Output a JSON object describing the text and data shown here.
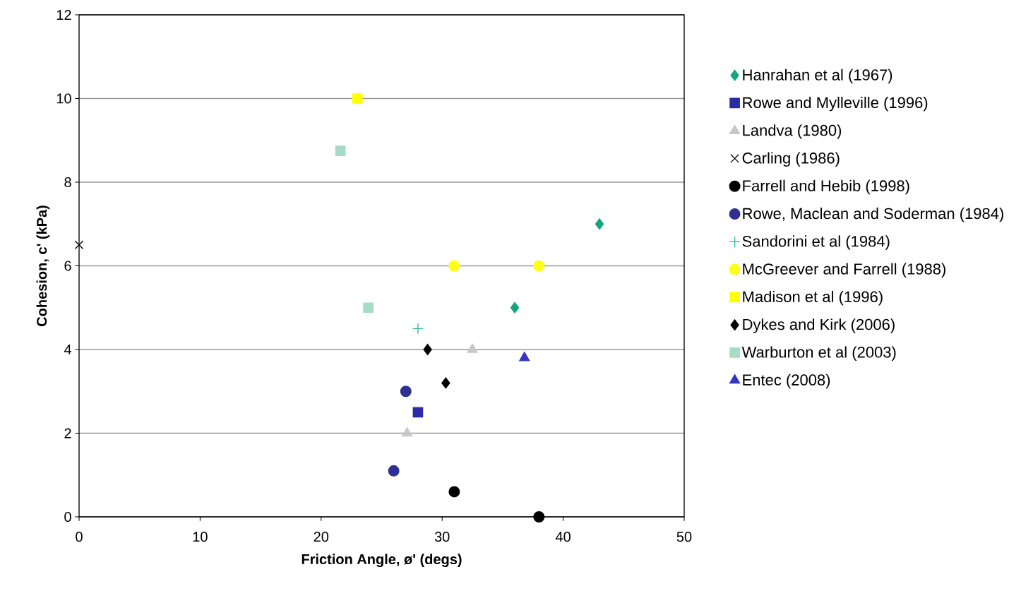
{
  "chart_data": {
    "type": "scatter",
    "xlabel": "Friction Angle, ø' (degs)",
    "ylabel": "Cohesion, c' (kPa)",
    "xlim": [
      0,
      50
    ],
    "ylim": [
      0,
      12
    ],
    "xticks": [
      0,
      10,
      20,
      30,
      40,
      50
    ],
    "yticks": [
      0,
      2,
      4,
      6,
      8,
      10,
      12
    ],
    "grid": "y",
    "legend": "right",
    "series": [
      {
        "name": "Hanrahan et al (1967)",
        "color": "#16a57c",
        "marker": "diamond",
        "x": [
          43.0,
          36.0
        ],
        "values": [
          7.0,
          5.0
        ]
      },
      {
        "name": "Rowe and Mylleville (1996)",
        "color": "#2b2ba3",
        "marker": "square",
        "x": [
          28.0
        ],
        "values": [
          2.5
        ]
      },
      {
        "name": "Landva (1980)",
        "color": "#c8c8c8",
        "marker": "triangle",
        "x": [
          32.5,
          27.1
        ],
        "values": [
          4.0,
          2.0
        ]
      },
      {
        "name": "Carling (1986)",
        "color": "#000000",
        "marker": "cross",
        "x": [
          0
        ],
        "values": [
          6.5
        ]
      },
      {
        "name": "Farrell and Hebib (1998)",
        "color": "#000000",
        "marker": "circle",
        "x": [
          31.0,
          38.0
        ],
        "values": [
          0.6,
          0.0
        ]
      },
      {
        "name": "Rowe, Maclean and Soderman (1984)",
        "color": "#2e3192",
        "marker": "circle",
        "x": [
          27.0,
          26.0
        ],
        "values": [
          3.0,
          1.1
        ]
      },
      {
        "name": "Sandorini et al (1984)",
        "color": "#1fbf9a",
        "marker": "plus",
        "x": [
          28.0
        ],
        "values": [
          4.5
        ]
      },
      {
        "name": "McGreever and Farrell (1988)",
        "color": "#ffff1a",
        "marker": "circle",
        "x": [
          31.0,
          38.0
        ],
        "values": [
          6.0,
          6.0
        ]
      },
      {
        "name": "Madison et al (1996)",
        "color": "#ffff00",
        "marker": "square",
        "x": [
          23.0
        ],
        "values": [
          10.0
        ]
      },
      {
        "name": "Dykes and Kirk (2006)",
        "color": "#000000",
        "marker": "diamond",
        "x": [
          28.8,
          30.3
        ],
        "values": [
          4.0,
          3.2
        ]
      },
      {
        "name": "Warburton et al (2003)",
        "color": "#a6dcc4",
        "marker": "square",
        "x": [
          21.6,
          23.9
        ],
        "values": [
          8.75,
          5.0
        ]
      },
      {
        "name": "Entec (2008)",
        "color": "#3535c0",
        "marker": "triangle",
        "x": [
          36.8
        ],
        "values": [
          3.8
        ]
      }
    ]
  }
}
